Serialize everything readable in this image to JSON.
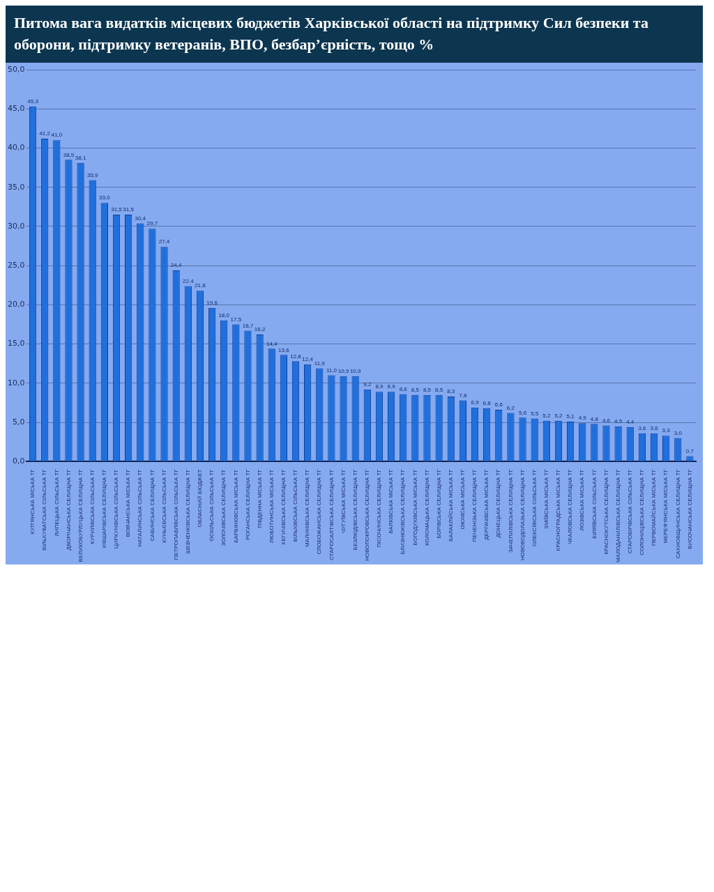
{
  "chart_data": {
    "type": "bar",
    "title": "Питома вага видатків місцевих бюджетів Харківської області на підтримку Сил безпеки та оборони, підтримку ветеранів, ВПО, безбар’єрність, тощо %",
    "categories": [
      "КУП'ЯНСЬКА МІСЬКА ТГ",
      "ВІЛЬХУВАТСЬКА СІЛЬСЬКА ТГ",
      "ЛИПЕЦЬКА СІЛЬСЬКА ТГ",
      "ДВОРІЧАНСЬКА СЕЛИЩНА ТГ",
      "ВЕЛИКОБУРЛУЦЬКА СЕЛИЩНА ТГ",
      "КУРИЛІВСЬКА СІЛЬСЬКА ТГ",
      "КІВШАРІВСЬКА СЕЛИЩНА ТГ",
      "ЦИРКУНІВСЬКА СІЛЬСЬКА ТГ",
      "ВОВЧАНСЬКА МІСЬКА ТГ",
      "НАТАЛИНСЬКА СІЛЬСЬКА ТГ",
      "САВИНСЬКА СЕЛИЩНА ТГ",
      "КУНЬЄВСЬКА СІЛЬСЬКА ТГ",
      "ПЕТРОПАВЛІВСЬКА СІЛЬСЬКА ТГ",
      "ШЕВЧЕНКІВСЬКА СЕЛИЩНА ТГ",
      "ОБЛАСНИЙ БЮДЖЕТ",
      "ОСКІЛЬСЬКА СІЛЬСЬКА ТГ",
      "ЗОЛОЧІВСЬКА СЕЛИЩНА ТГ",
      "БАРВІНКІВСЬКА МІСЬКА ТГ",
      "РОГАНСЬКА СЕЛИЩНА ТГ",
      "ПІВДЕННА МІСЬКА ТГ",
      "ЛЮБОТИНСЬКА МІСЬКА ТГ",
      "КЕГИЧІВСЬКА СЕЛИЩНА ТГ",
      "ВІЛЬХІВСЬКА СІЛЬСЬКА ТГ",
      "МАЛИНІВСЬКА СЕЛИЩНА ТГ",
      "СЛОБОЖАНСЬКА СЕЛИЩНА ТГ",
      "СТАРОСАЛТІВСЬКА СЕЛИЩНА ТГ",
      "ЧУГУЇВСЬКА МІСЬКА ТГ",
      "БЕЗЛЮДІВСЬКА СЕЛИЩНА ТГ",
      "НОВОПОКРОВСЬКА СЕЛИЩНА ТГ",
      "ПІСОЧИНСЬКА СЕЛИЩНА ТГ",
      "ВАЛКІВСЬКА МІСЬКА ТГ",
      "БЛИЗНЮКІВСЬКА СЕЛИЩНА ТГ",
      "БОГОДУХІВСЬКА МІСЬКА ТГ",
      "КОЛОМАЦЬКА СЕЛИЩНА ТГ",
      "БОРІВСЬКА СЕЛИЩНА ТГ",
      "БАЛАКЛІЙСЬКА МІСЬКА ТГ",
      "ІЗЮМСЬКА МІСЬКА ТГ",
      "ПЕЧЕНІЗЬКА СЕЛИЩНА ТГ",
      "ДЕРГАЧІВСЬКА МІСЬКА ТГ",
      "ДОНЕЦЬКА СЕЛИЩНА ТГ",
      "ЗАЧЕПИЛІВСЬКА СЕЛИЩНА ТГ",
      "НОВОВОДОЛАЗЬКА СЕЛИЩНА ТГ",
      "ОЛЕКСІЇВСЬКА СІЛЬСЬКА ТГ",
      "ЗМІЇВСЬКА МІСЬКА ТГ",
      "КРАСНОГРАДСЬКА МІСЬКА ТГ",
      "ЧКАЛОВСЬКА СЕЛИЩНА ТГ",
      "ЛОЗІВСЬКА МІСЬКА ТГ",
      "БІЛЯЇВСЬКА СІЛЬСЬКА ТГ",
      "КРАСНОКУТСЬКА СЕЛИЩНА ТГ",
      "МАЛОДАНИЛІВСЬКА СЕЛИЩНА ТГ",
      "СТАРОВІРІВСЬКА СІЛЬСЬКА ТГ",
      "СОЛОНИЦІВСЬКА СЕЛИЩНА ТГ",
      "ПЕРВОМАЙСЬКА МІСЬКА ТГ",
      "МЕРЕФ'ЯНСЬКА МІСЬКА ТГ",
      "САХНОВЩИНСЬКА СЕЛИЩНА ТГ",
      "ВИСОЧАНСЬКА СЕЛИЩНА ТГ"
    ],
    "values": [
      45.3,
      41.2,
      41.0,
      38.5,
      38.1,
      35.9,
      33.0,
      31.5,
      31.5,
      30.4,
      29.7,
      27.4,
      24.4,
      22.4,
      21.8,
      19.6,
      18.0,
      17.5,
      16.7,
      16.2,
      14.4,
      13.6,
      12.8,
      12.4,
      11.9,
      11.0,
      10.9,
      10.9,
      9.2,
      8.9,
      8.9,
      8.6,
      8.5,
      8.5,
      8.5,
      8.3,
      7.8,
      6.9,
      6.8,
      6.6,
      6.2,
      5.6,
      5.5,
      5.2,
      5.2,
      5.1,
      4.9,
      4.8,
      4.6,
      4.5,
      4.4,
      3.6,
      3.6,
      3.3,
      3.0,
      0.7
    ],
    "value_labels": [
      "45,3",
      "41,2",
      "41,0",
      "38,5",
      "38,1",
      "35,9",
      "33,0",
      "31,5",
      "31,5",
      "30,4",
      "29,7",
      "27,4",
      "24,4",
      "22,4",
      "21,8",
      "19,6",
      "18,0",
      "17,5",
      "16,7",
      "16,2",
      "14,4",
      "13,6",
      "12,8",
      "12,4",
      "11,9",
      "11,0",
      "10,9",
      "10,9",
      "9,2",
      "8,9",
      "8,9",
      "8,6",
      "8,5",
      "8,5",
      "8,5",
      "8,3",
      "7,8",
      "6,9",
      "6,8",
      "6,6",
      "6,2",
      "5,6",
      "5,5",
      "5,2",
      "5,2",
      "5,1",
      "4,9",
      "4,8",
      "4,6",
      "4,5",
      "4,4",
      "3,6",
      "3,6",
      "3,3",
      "3,0",
      "0,7"
    ],
    "color": "#1f6fdc",
    "ylim": [
      0,
      50
    ],
    "yticks": [
      {
        "value": 0,
        "label": "0,0"
      },
      {
        "value": 5,
        "label": "5,0"
      },
      {
        "value": 10,
        "label": "10,0"
      },
      {
        "value": 15,
        "label": "15,0"
      },
      {
        "value": 20,
        "label": "20,0"
      },
      {
        "value": 25,
        "label": "25,0"
      },
      {
        "value": 30,
        "label": "30,0"
      },
      {
        "value": 35,
        "label": "35,0"
      },
      {
        "value": 40,
        "label": "40,0"
      },
      {
        "value": 45,
        "label": "45,0"
      },
      {
        "value": 50,
        "label": "50,0"
      }
    ],
    "grid": "y",
    "legend": false
  }
}
